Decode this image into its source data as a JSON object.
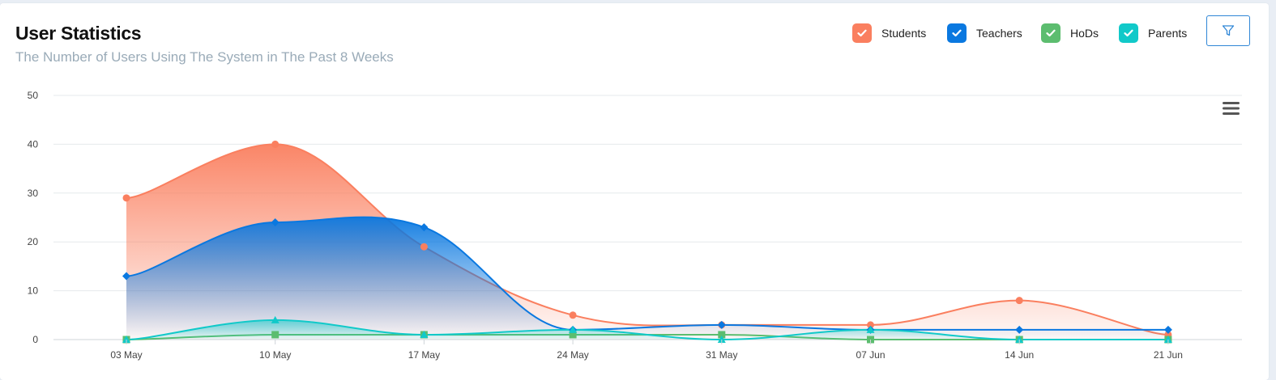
{
  "header": {
    "title": "User Statistics",
    "subtitle": "The Number of Users Using The System in The Past 8 Weeks"
  },
  "legend": [
    {
      "label": "Students",
      "color": "#fa7f5f",
      "checked": true
    },
    {
      "label": "Teachers",
      "color": "#0a78e0",
      "checked": true
    },
    {
      "label": "HoDs",
      "color": "#5cbd6f",
      "checked": true
    },
    {
      "label": "Parents",
      "color": "#11c9c9",
      "checked": true
    }
  ],
  "toolbar": {
    "filter_icon": "filter-icon",
    "menu_icon": "hamburger-menu-icon"
  },
  "chart_data": {
    "type": "area",
    "title": "",
    "xlabel": "",
    "ylabel": "",
    "categories": [
      "03 May",
      "10 May",
      "17 May",
      "24 May",
      "31 May",
      "07 Jun",
      "14 Jun",
      "21 Jun"
    ],
    "yticks": [
      "0",
      "10",
      "20",
      "30",
      "40",
      "50"
    ],
    "ylim": [
      0,
      50
    ],
    "grid": true,
    "legend_position": "top-right",
    "series": [
      {
        "name": "Students",
        "color": "#fa7f5f",
        "marker": "circle",
        "fill": true,
        "values": [
          29,
          40,
          19,
          5,
          3,
          3,
          8,
          1
        ]
      },
      {
        "name": "Teachers",
        "color": "#0a78e0",
        "marker": "diamond",
        "fill": true,
        "values": [
          13,
          24,
          23,
          2,
          3,
          2,
          2,
          2
        ]
      },
      {
        "name": "HoDs",
        "color": "#5cbd6f",
        "marker": "square",
        "fill": false,
        "values": [
          0,
          1,
          1,
          1,
          1,
          0,
          0,
          0
        ]
      },
      {
        "name": "Parents",
        "color": "#11c9c9",
        "marker": "triangle",
        "fill": true,
        "values": [
          0,
          4,
          1,
          2,
          0,
          2,
          0,
          0
        ]
      }
    ]
  }
}
